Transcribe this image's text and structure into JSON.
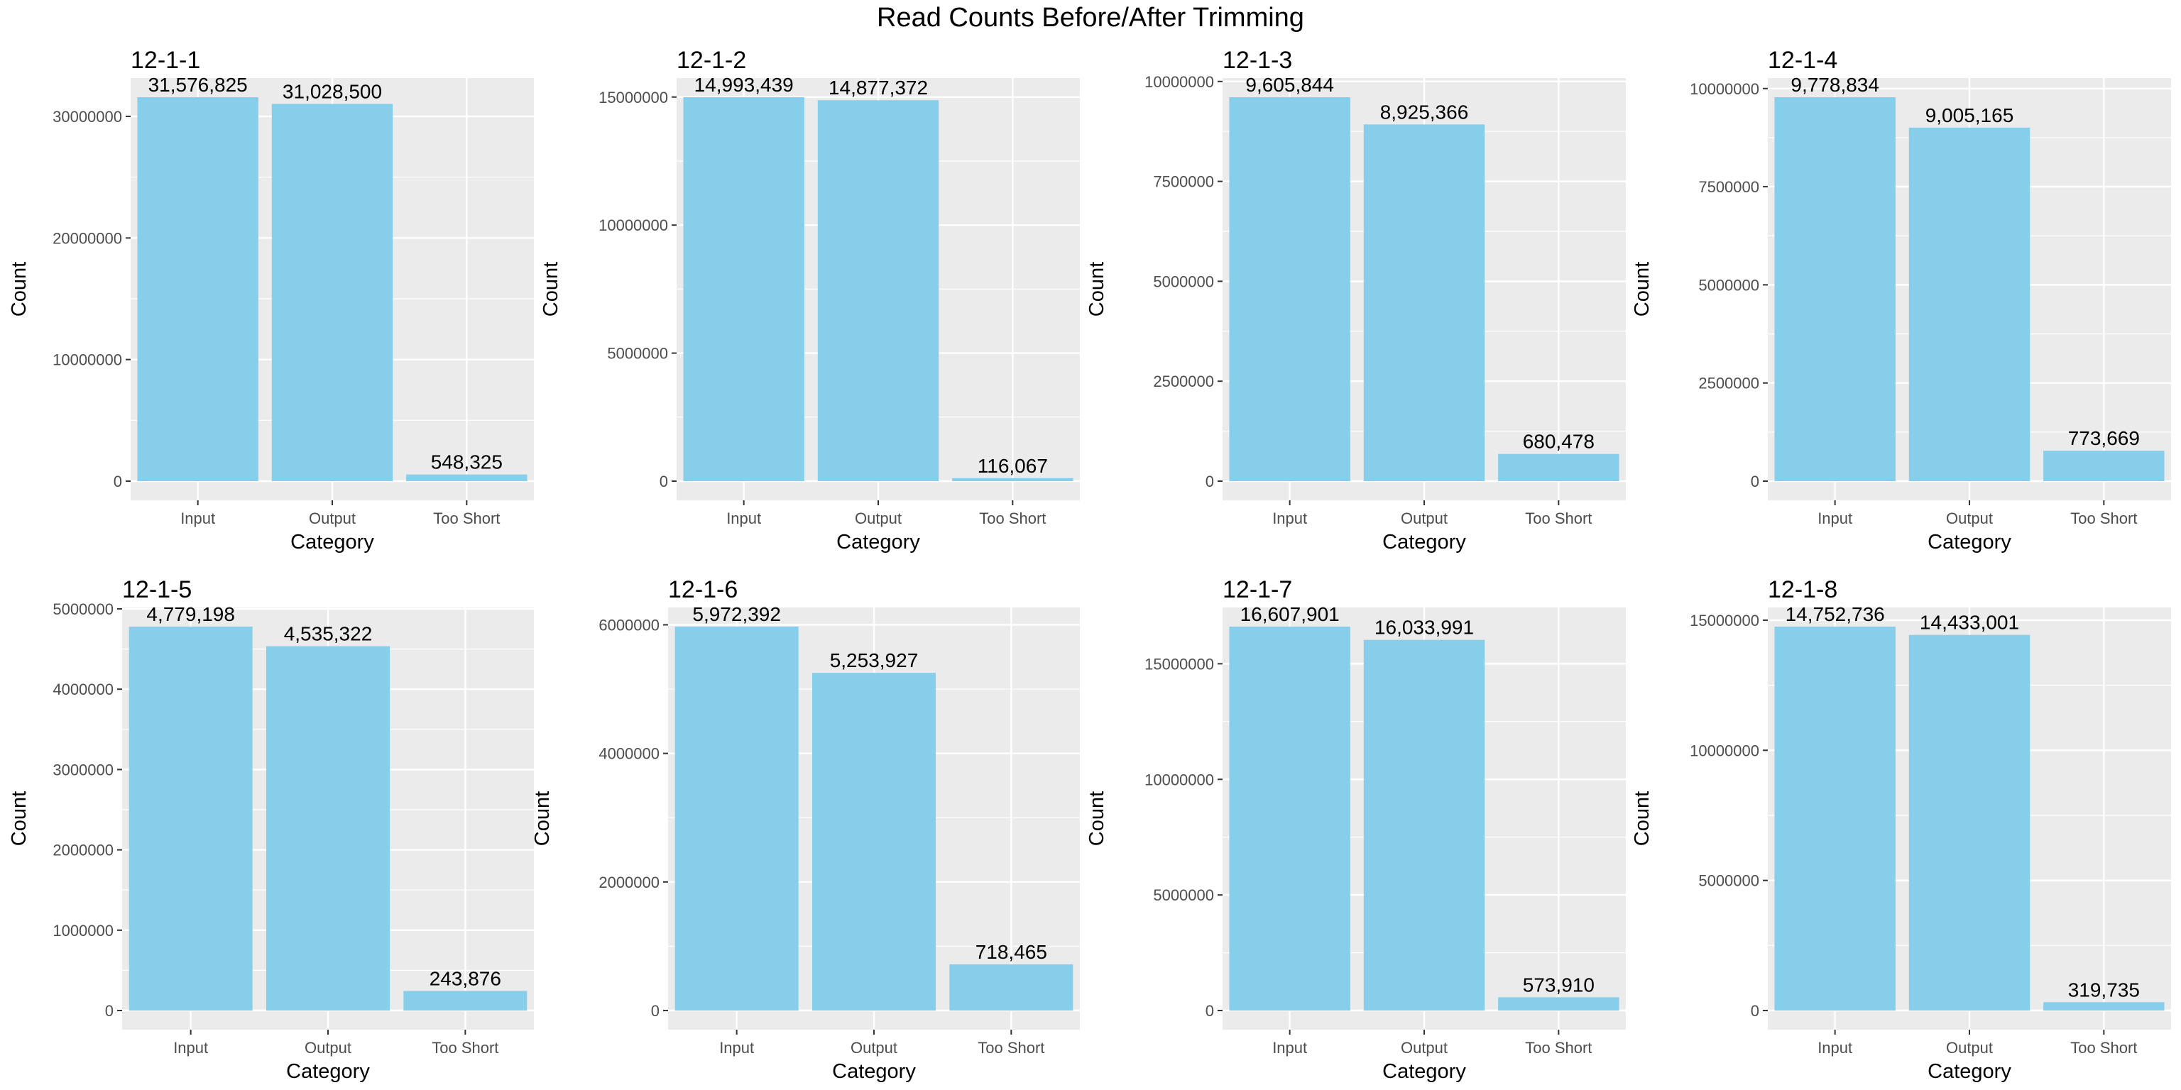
{
  "figure_title": "Read Counts Before/After Trimming",
  "style": {
    "bar_color": "#87CEEB",
    "panel_background": "#EBEBEB",
    "grid_color": "#FFFFFF",
    "text_color": "#000000",
    "tick_color": "#4D4D4D"
  },
  "chart_data": [
    {
      "type": "bar",
      "title": "12-1-1",
      "xlabel": "Category",
      "ylabel": "Count",
      "categories": [
        "Input",
        "Output",
        "Too Short"
      ],
      "values": [
        31576825,
        31028500,
        548325
      ],
      "value_labels": [
        "31,576,825",
        "31,028,500",
        "548,325"
      ],
      "ylim": [
        0,
        31576825
      ],
      "yticks": [
        0,
        10000000,
        20000000,
        30000000
      ],
      "ytick_labels": [
        "0",
        "10,000,000",
        "20,000,000",
        "30,000,000"
      ],
      "grid": true
    },
    {
      "type": "bar",
      "title": "12-1-2",
      "xlabel": "Category",
      "ylabel": "Count",
      "categories": [
        "Input",
        "Output",
        "Too Short"
      ],
      "values": [
        14993439,
        14877372,
        116067
      ],
      "value_labels": [
        "14,993,439",
        "14,877,372",
        "116,067"
      ],
      "ylim": [
        0,
        14993439
      ],
      "yticks": [
        0,
        5000000,
        10000000,
        15000000
      ],
      "ytick_labels": [
        "0",
        "5,000,000",
        "10,000,000",
        "15,000,000"
      ],
      "grid": true
    },
    {
      "type": "bar",
      "title": "12-1-3",
      "xlabel": "Category",
      "ylabel": "Count",
      "categories": [
        "Input",
        "Output",
        "Too Short"
      ],
      "values": [
        9605844,
        8925366,
        680478
      ],
      "value_labels": [
        "9,605,844",
        "8,925,366",
        "680,478"
      ],
      "ylim": [
        0,
        9605844
      ],
      "yticks": [
        0,
        2500000,
        5000000,
        7500000,
        10000000
      ],
      "ytick_labels": [
        "0",
        "2,500,000",
        "5,000,000",
        "7,500,000",
        "10,000,000"
      ],
      "grid": true
    },
    {
      "type": "bar",
      "title": "12-1-4",
      "xlabel": "Category",
      "ylabel": "Count",
      "categories": [
        "Input",
        "Output",
        "Too Short"
      ],
      "values": [
        9778834,
        9005165,
        773669
      ],
      "value_labels": [
        "9,778,834",
        "9,005,165",
        "773,669"
      ],
      "ylim": [
        0,
        9778834
      ],
      "yticks": [
        0,
        2500000,
        5000000,
        7500000,
        10000000
      ],
      "ytick_labels": [
        "0",
        "2,500,000",
        "5,000,000",
        "7,500,000",
        "10,000,000"
      ],
      "grid": true
    },
    {
      "type": "bar",
      "title": "12-1-5",
      "xlabel": "Category",
      "ylabel": "Count",
      "categories": [
        "Input",
        "Output",
        "Too Short"
      ],
      "values": [
        4779198,
        4535322,
        243876
      ],
      "value_labels": [
        "4,779,198",
        "4,535,322",
        "243,876"
      ],
      "ylim": [
        0,
        4779198
      ],
      "yticks": [
        0,
        1000000,
        2000000,
        3000000,
        4000000,
        5000000
      ],
      "ytick_labels": [
        "0",
        "1,000,000",
        "2,000,000",
        "3,000,000",
        "4,000,000",
        "5,000,000"
      ],
      "grid": true
    },
    {
      "type": "bar",
      "title": "12-1-6",
      "xlabel": "Category",
      "ylabel": "Count",
      "categories": [
        "Input",
        "Output",
        "Too Short"
      ],
      "values": [
        5972392,
        5253927,
        718465
      ],
      "value_labels": [
        "5,972,392",
        "5,253,927",
        "718,465"
      ],
      "ylim": [
        0,
        5972392
      ],
      "yticks": [
        0,
        2000000,
        4000000,
        6000000
      ],
      "ytick_labels": [
        "0",
        "2,000,000",
        "4,000,000",
        "6,000,000"
      ],
      "grid": true
    },
    {
      "type": "bar",
      "title": "12-1-7",
      "xlabel": "Category",
      "ylabel": "Count",
      "categories": [
        "Input",
        "Output",
        "Too Short"
      ],
      "values": [
        16607901,
        16033991,
        573910
      ],
      "value_labels": [
        "16,607,901",
        "16,033,991",
        "573,910"
      ],
      "ylim": [
        0,
        16607901
      ],
      "yticks": [
        0,
        5000000,
        10000000,
        15000000
      ],
      "ytick_labels": [
        "0",
        "5,000,000",
        "10,000,000",
        "15,000,000"
      ],
      "grid": true
    },
    {
      "type": "bar",
      "title": "12-1-8",
      "xlabel": "Category",
      "ylabel": "Count",
      "categories": [
        "Input",
        "Output",
        "Too Short"
      ],
      "values": [
        14752736,
        14433001,
        319735
      ],
      "value_labels": [
        "14,752,736",
        "14,433,001",
        "319,735"
      ],
      "ylim": [
        0,
        14752736
      ],
      "yticks": [
        0,
        5000000,
        10000000,
        15000000
      ],
      "ytick_labels": [
        "0",
        "5,000,000",
        "10,000,000",
        "15,000,000"
      ],
      "grid": true
    }
  ]
}
